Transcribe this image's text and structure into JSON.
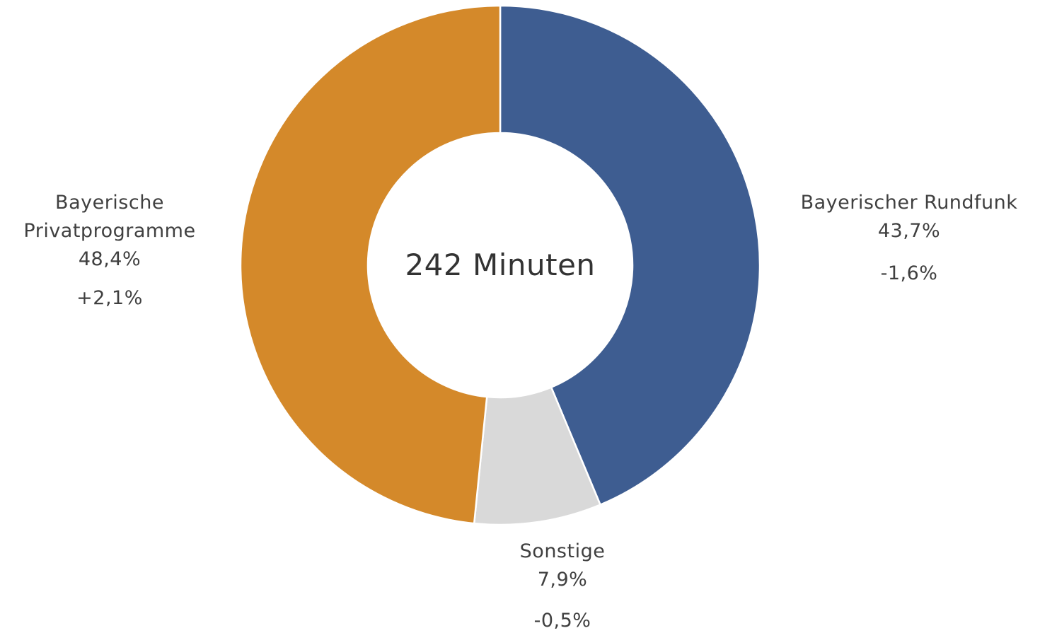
{
  "chart_data": {
    "type": "donut",
    "center_label": "242 Minuten",
    "categories": [
      "Bayerischer Rundfunk",
      "Sonstige",
      "Bayerische Privatprogramme"
    ],
    "values": [
      43.7,
      7.9,
      48.4
    ],
    "value_labels": [
      "43,7%",
      "7,9%",
      "48,4%"
    ],
    "change_labels": [
      "-1,6%",
      "-0,5%",
      "+2,1%"
    ],
    "colors": [
      "#3e5d91",
      "#d9d9d9",
      "#d4892a"
    ]
  }
}
